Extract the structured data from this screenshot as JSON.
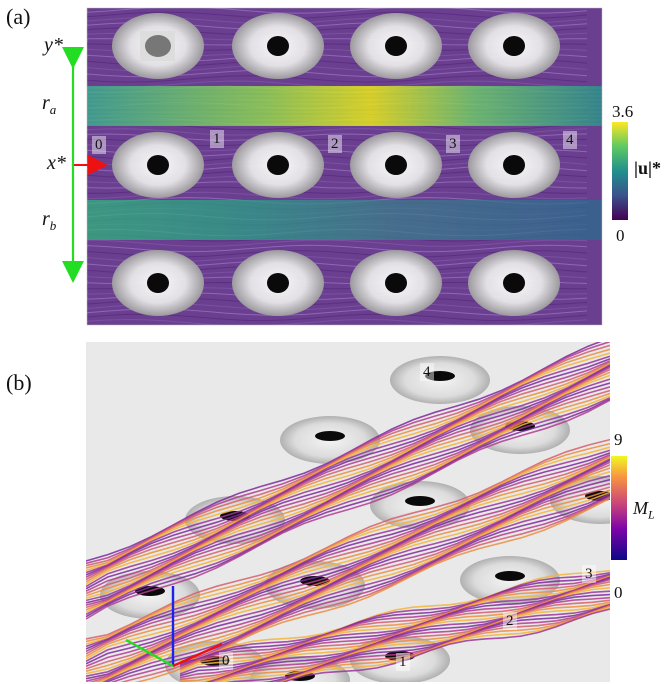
{
  "panel_a": {
    "label": "(a)",
    "axis_y": "y*",
    "axis_x": "x*",
    "r_a": "r",
    "r_a_sub": "a",
    "r_b": "r",
    "r_b_sub": "b",
    "markers": [
      "0",
      "1",
      "2",
      "3",
      "4"
    ],
    "colorbar": {
      "max": "3.6",
      "min": "0",
      "title": "|u|*"
    },
    "colors": {
      "low": "#440154",
      "mid": "#21908c",
      "high": "#fde725"
    }
  },
  "panel_b": {
    "label": "(b)",
    "markers": [
      "0",
      "1",
      "2",
      "3",
      "4"
    ],
    "colorbar": {
      "max": "9",
      "min": "0",
      "title_main": "M",
      "title_sub": "L"
    },
    "colors": {
      "low": "#0d0887",
      "mid": "#cc4778",
      "high": "#f0f921"
    }
  }
}
